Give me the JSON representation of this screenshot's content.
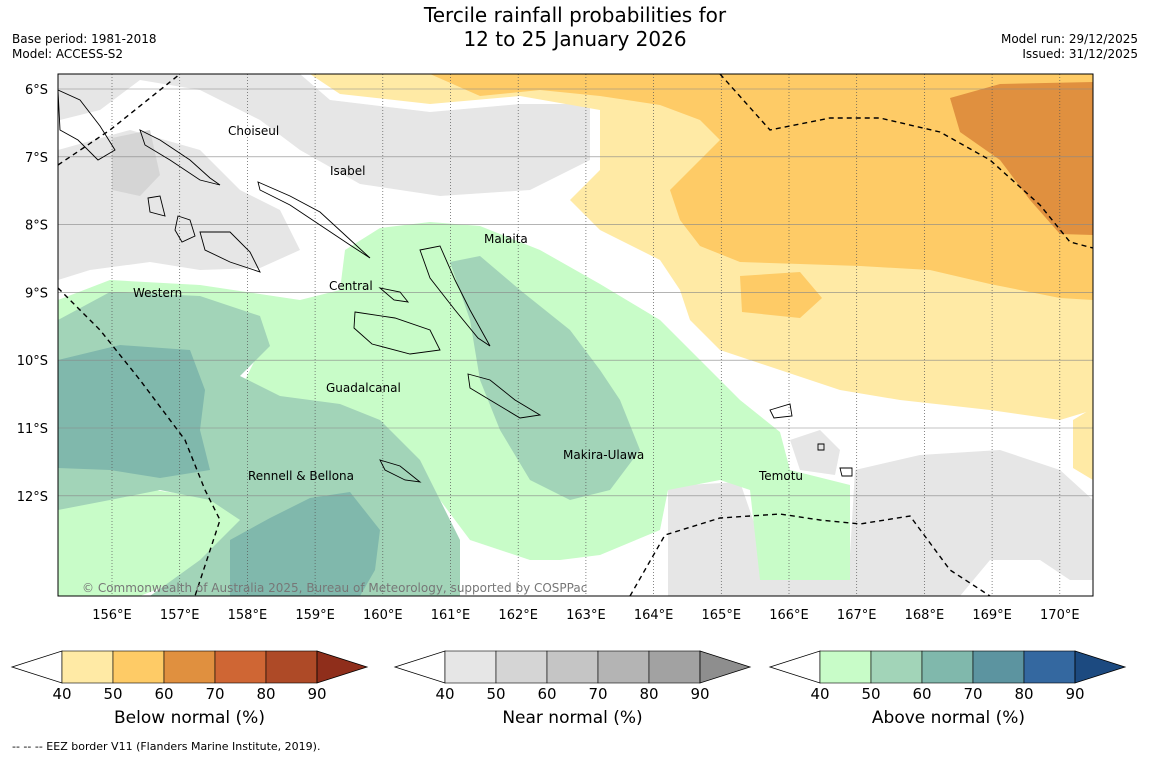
{
  "title": {
    "line1": "Tercile rainfall probabilities for",
    "line2": "12 to 25 January 2026"
  },
  "meta_left": {
    "base_period": "Base period: 1981-2018",
    "model": "Model: ACCESS-S2"
  },
  "meta_right": {
    "model_run": "Model run: 29/12/2025",
    "issued": "Issued: 31/12/2025"
  },
  "map": {
    "lat_labels": [
      "6°S",
      "7°S",
      "8°S",
      "9°S",
      "10°S",
      "11°S",
      "12°S"
    ],
    "lon_labels": [
      "156°E",
      "157°E",
      "158°E",
      "159°E",
      "160°E",
      "161°E",
      "162°E",
      "163°E",
      "164°E",
      "165°E",
      "166°E",
      "167°E",
      "168°E",
      "169°E",
      "170°E"
    ],
    "province_labels": [
      "Choiseul",
      "Isabel",
      "Malaita",
      "Western",
      "Central",
      "Guadalcanal",
      "Makira-Ulawa",
      "Rennell & Bellona",
      "Temotu"
    ],
    "copyright": "© Commonwealth of Australia 2025, Bureau of Meteorology, supported by COSPPac"
  },
  "colorbars": [
    {
      "label": "Below normal (%)",
      "ticks": [
        "40",
        "50",
        "60",
        "70",
        "80",
        "90"
      ],
      "colors": [
        "#ffeaa5",
        "#fecb66",
        "#e0903f",
        "#cf6634",
        "#ae4a27",
        "#8f2e1b"
      ]
    },
    {
      "label": "Near normal (%)",
      "ticks": [
        "40",
        "50",
        "60",
        "70",
        "80",
        "90"
      ],
      "colors": [
        "#e6e6e6",
        "#d5d5d5",
        "#c5c5c5",
        "#b4b4b4",
        "#a2a2a2",
        "#8e8e8e"
      ]
    },
    {
      "label": "Above normal (%)",
      "ticks": [
        "40",
        "50",
        "60",
        "70",
        "80",
        "90"
      ],
      "colors": [
        "#c8fcc8",
        "#a2d4b8",
        "#80b8ac",
        "#5c94a0",
        "#3468a0",
        "#1c4a80"
      ]
    }
  ],
  "footnote": "--  --  -- EEZ border V11 (Flanders Marine Institute, 2019)."
}
